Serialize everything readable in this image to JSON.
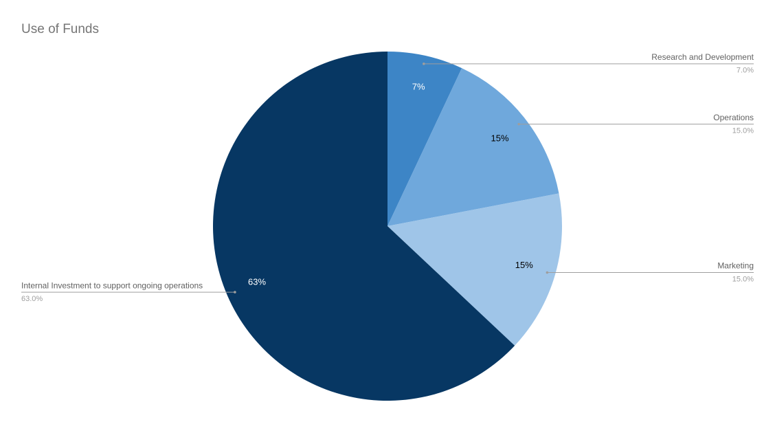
{
  "chart_data": {
    "type": "pie",
    "title": "Use of Funds",
    "categories": [
      "Research and Development",
      "Operations",
      "Marketing",
      "Internal Investment to support ongoing operations"
    ],
    "values": [
      7,
      15,
      15,
      63
    ],
    "value_labels": [
      "7%",
      "15%",
      "15%",
      "63%"
    ],
    "callout_value_labels": [
      "7.0%",
      "15.0%",
      "15.0%",
      "63.0%"
    ],
    "colors": [
      "#3d85c6",
      "#6fa8dc",
      "#9fc5e8",
      "#073763"
    ],
    "label_colors": [
      "#ffffff",
      "#000000",
      "#000000",
      "#ffffff"
    ]
  }
}
